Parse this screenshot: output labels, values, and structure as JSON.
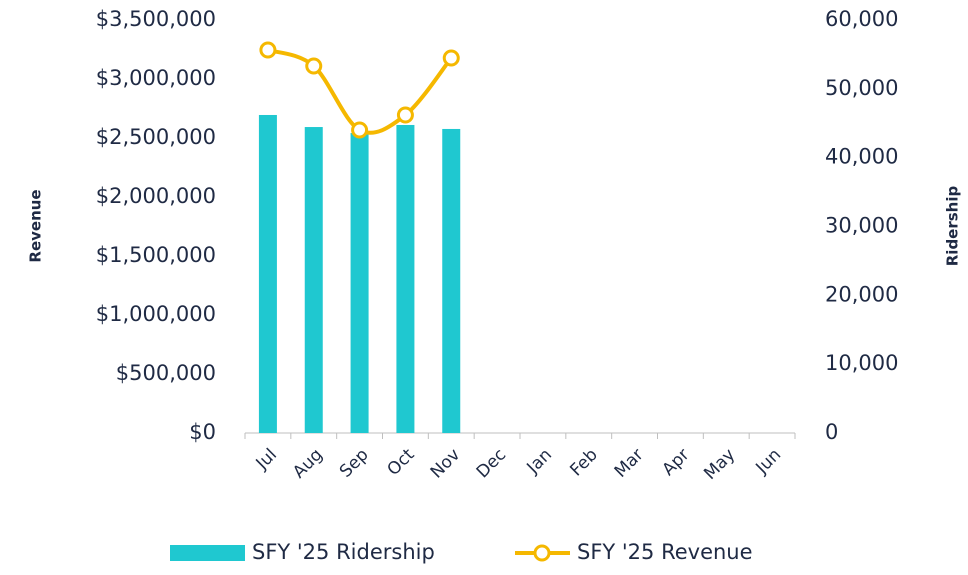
{
  "chart_data": {
    "type": "bar-line",
    "categories": [
      "Jul",
      "Aug",
      "Sep",
      "Oct",
      "Nov",
      "Dec",
      "Jan",
      "Feb",
      "Mar",
      "Apr",
      "May",
      "Jun"
    ],
    "ylabel": "Revenue",
    "y2label": "Ridership",
    "ylim": [
      0,
      3500000
    ],
    "yticks": [
      {
        "value": 0,
        "label": "$0"
      },
      {
        "value": 500000,
        "label": "$500,000"
      },
      {
        "value": 1000000,
        "label": "$1,000,000"
      },
      {
        "value": 1500000,
        "label": "$1,500,000"
      },
      {
        "value": 2000000,
        "label": "$2,000,000"
      },
      {
        "value": 2500000,
        "label": "$2,500,000"
      },
      {
        "value": 3000000,
        "label": "$3,000,000"
      },
      {
        "value": 3500000,
        "label": "$3,500,000"
      }
    ],
    "y2lim": [
      0,
      60000
    ],
    "y2ticks": [
      0,
      {
        "value": 10000,
        "label": "10,000"
      },
      {
        "value": 20000,
        "label": "20,000"
      },
      {
        "value": 30000,
        "label": "30,000"
      },
      {
        "value": 40000,
        "label": "40,000"
      },
      {
        "value": 50000,
        "label": "50,000"
      },
      {
        "value": 60000,
        "label": "60,000"
      }
    ],
    "grid": false,
    "legend": "bottom",
    "series": [
      {
        "name": "SFY '25 Ridership",
        "type": "bar",
        "axis": "y2",
        "color": "#1fc8d0",
        "values": [
          46200,
          44450,
          43580,
          44750,
          44170,
          null,
          null,
          null,
          null,
          null,
          null,
          null
        ]
      },
      {
        "name": "SFY '25 Revenue",
        "type": "line",
        "axis": "y",
        "color": "#f5b800",
        "values": [
          3246000,
          3110000,
          2568000,
          2695000,
          3178000,
          null,
          null,
          null,
          null,
          null,
          null,
          null
        ]
      }
    ]
  }
}
